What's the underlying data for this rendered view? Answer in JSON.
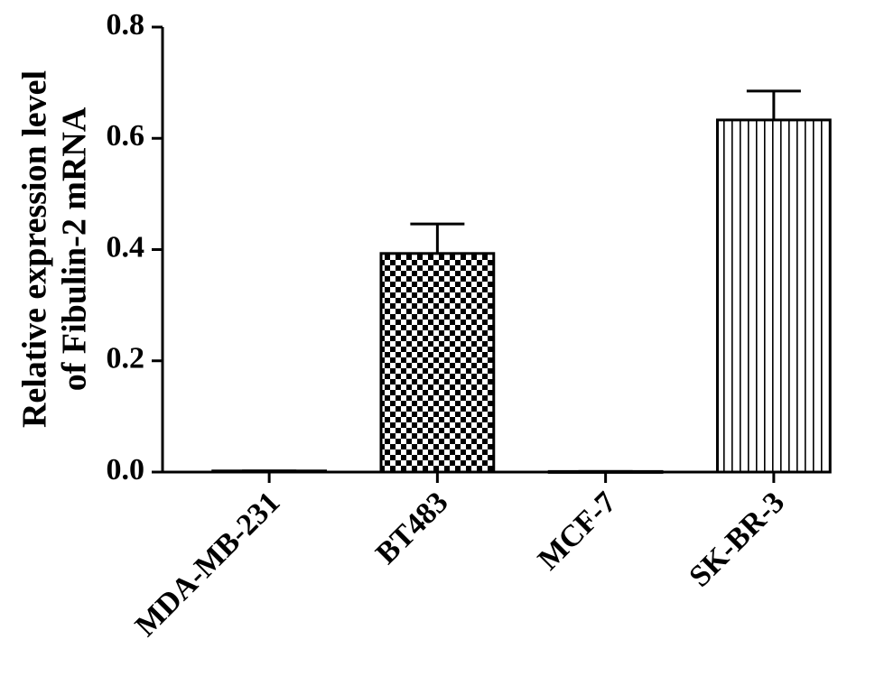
{
  "chart_data": {
    "type": "bar",
    "y_label": [
      "Relative expression level",
      "of Fibulin-2 mRNA"
    ],
    "categories": [
      "MDA-MB-231",
      "BT483",
      "MCF-7",
      "SK-BR-3"
    ],
    "values": [
      0.002,
      0.393,
      0.001,
      0.633
    ],
    "errors": [
      0,
      0.053,
      0,
      0.052
    ],
    "patterns": [
      "none",
      "checker",
      "none",
      "vstripe"
    ],
    "color": "#000000",
    "ylim": [
      0,
      0.8
    ],
    "yticks": [
      {
        "value": 0,
        "label": "0.0"
      },
      0.2,
      0.4,
      0.6,
      0.8
    ]
  }
}
